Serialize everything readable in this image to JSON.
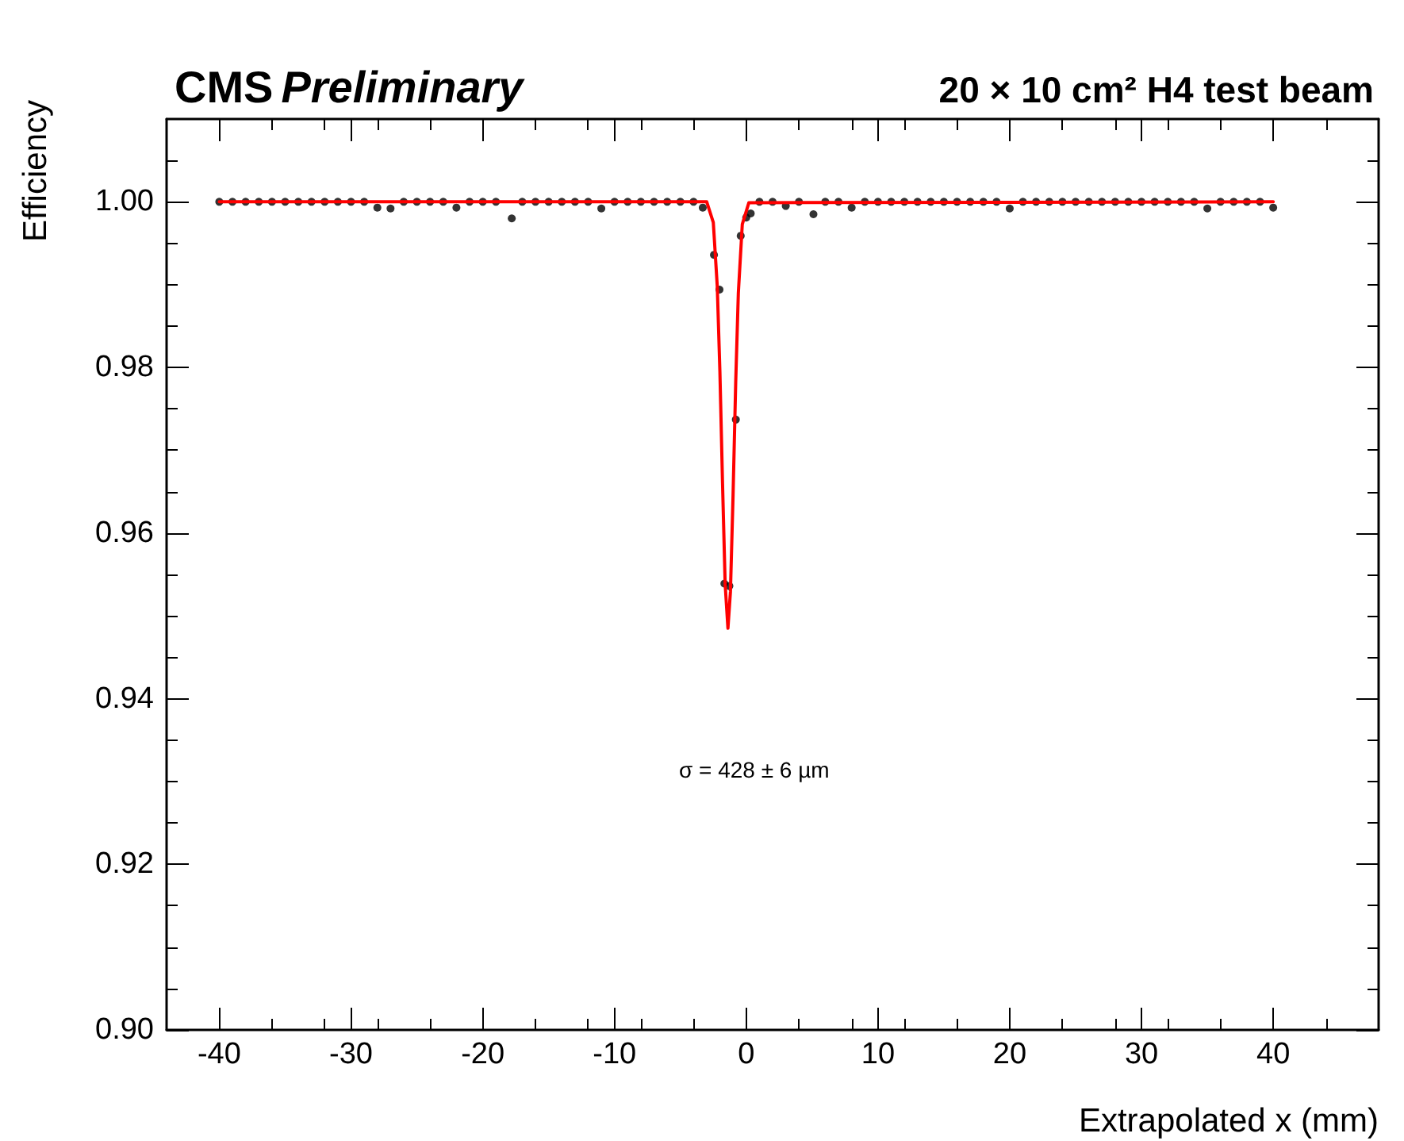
{
  "chart_data": {
    "type": "scatter",
    "title": "CMS Preliminary",
    "subtitle": "20 × 10 cm² H4 test beam",
    "xlabel": "Extrapolated x (mm)",
    "ylabel": "Efficiency",
    "annotations": [
      "σ = 428 ± 6 µm"
    ],
    "xlim": [
      -44,
      48
    ],
    "xticks": [
      -40,
      -30,
      -20,
      -10,
      0,
      10,
      20,
      30,
      40
    ],
    "ylim": [
      0.9,
      1.01
    ],
    "yticks": [
      {
        "value": 0.9,
        "label": "0.90"
      },
      {
        "value": 0.92,
        "label": "0.92"
      },
      {
        "value": 0.94,
        "label": "0.94"
      },
      {
        "value": 0.96,
        "label": "0.96"
      },
      {
        "value": 0.98,
        "label": "0.98"
      },
      {
        "value": 1.0,
        "label": "1.00"
      }
    ],
    "marker": "circle",
    "series": [
      {
        "color": "#000000",
        "x": [
          -40,
          -39,
          -38,
          -37,
          -36,
          -35,
          -34,
          -33,
          -32,
          -31,
          -30,
          -29,
          -28,
          -27,
          -26,
          -25,
          -24,
          -23,
          -22,
          -21,
          -20,
          -19,
          -17.8,
          -17,
          -16,
          -15,
          -14,
          -13,
          -12,
          -11,
          -10,
          -9,
          -8,
          -7,
          -6,
          -5,
          -4,
          -3.3,
          -2.45,
          -2.03,
          -1.66,
          -1.28,
          -0.79,
          -0.42,
          0,
          0.34,
          1,
          2,
          3,
          4,
          5.1,
          6,
          7,
          8,
          9,
          10,
          11,
          12,
          13,
          14,
          15,
          16,
          17,
          18,
          19,
          20,
          21,
          22,
          23,
          24,
          25,
          26,
          27,
          28,
          29,
          30,
          31,
          32,
          33,
          34,
          35,
          36,
          37,
          38,
          39,
          40
        ],
        "values": [
          1,
          1,
          1,
          1,
          1,
          1,
          1,
          1,
          1,
          1,
          1,
          1,
          0.9993,
          0.9992,
          1,
          1,
          1,
          1,
          0.9993,
          1,
          1,
          1,
          0.998,
          1,
          1,
          1,
          1,
          1,
          1,
          0.9992,
          1,
          1,
          1,
          1,
          1,
          1,
          1,
          0.9993,
          0.9936,
          0.9894,
          0.9539,
          0.9536,
          0.9737,
          0.9959,
          0.9981,
          0.9986,
          1,
          1,
          0.9995,
          1,
          0.9985,
          1,
          1,
          0.9993,
          1,
          1,
          1,
          1,
          1,
          1,
          1,
          1,
          1,
          1,
          1,
          0.9992,
          1,
          1,
          1,
          1,
          1,
          1,
          1,
          1,
          1,
          1,
          1,
          1,
          1,
          1,
          0.9992,
          1,
          1,
          1,
          1,
          0.9993
        ]
      },
      {
        "type": "line",
        "color": "#ff0000",
        "marker": "none",
        "line_style": "solid",
        "x": [
          -40,
          -3,
          -2.5,
          -2.2,
          -2.0,
          -1.8,
          -1.6,
          -1.39,
          -1.2,
          -1.0,
          -0.8,
          -0.6,
          -0.3,
          0.2,
          40
        ],
        "values": [
          1,
          1,
          0.9975,
          0.9898,
          0.9795,
          0.966,
          0.9538,
          0.9485,
          0.9529,
          0.9646,
          0.9782,
          0.989,
          0.9973,
          0.9999,
          1
        ]
      }
    ]
  }
}
